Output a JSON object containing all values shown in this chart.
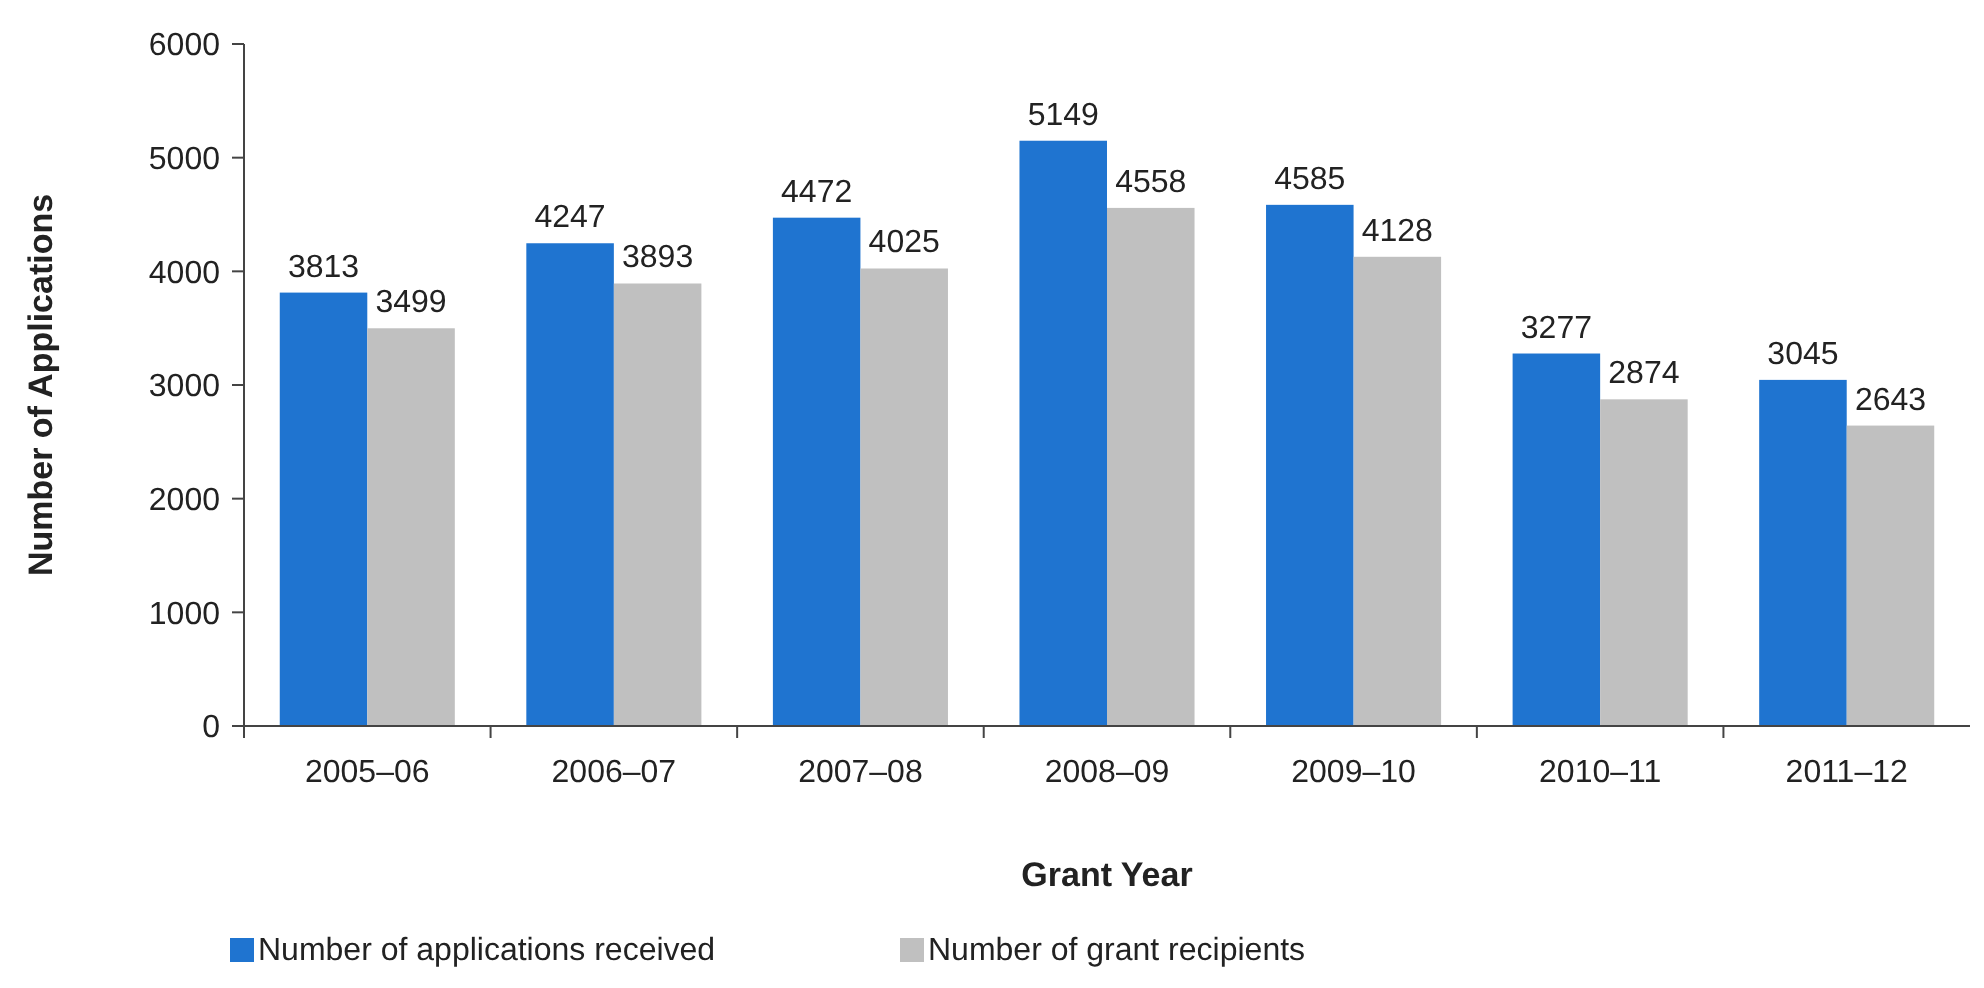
{
  "chart_data": {
    "type": "bar",
    "xlabel": "Grant Year",
    "ylabel": "Number of Applications",
    "categories": [
      "2005–06",
      "2006–07",
      "2007–08",
      "2008–09",
      "2009–10",
      "2010–11",
      "2011–12"
    ],
    "series": [
      {
        "name": "Number of applications received",
        "color": "#1f74d0",
        "values": [
          3813,
          4247,
          4472,
          5149,
          4585,
          3277,
          3045
        ]
      },
      {
        "name": "Number of grant recipients",
        "color": "#c0c0c0",
        "values": [
          3499,
          3893,
          4025,
          4558,
          4128,
          2874,
          2643
        ]
      }
    ],
    "ylim": [
      0,
      6000
    ],
    "yticks": [
      0,
      1000,
      2000,
      3000,
      4000,
      5000,
      6000
    ],
    "grid": false,
    "legend": "bottom",
    "data_labels": true
  }
}
